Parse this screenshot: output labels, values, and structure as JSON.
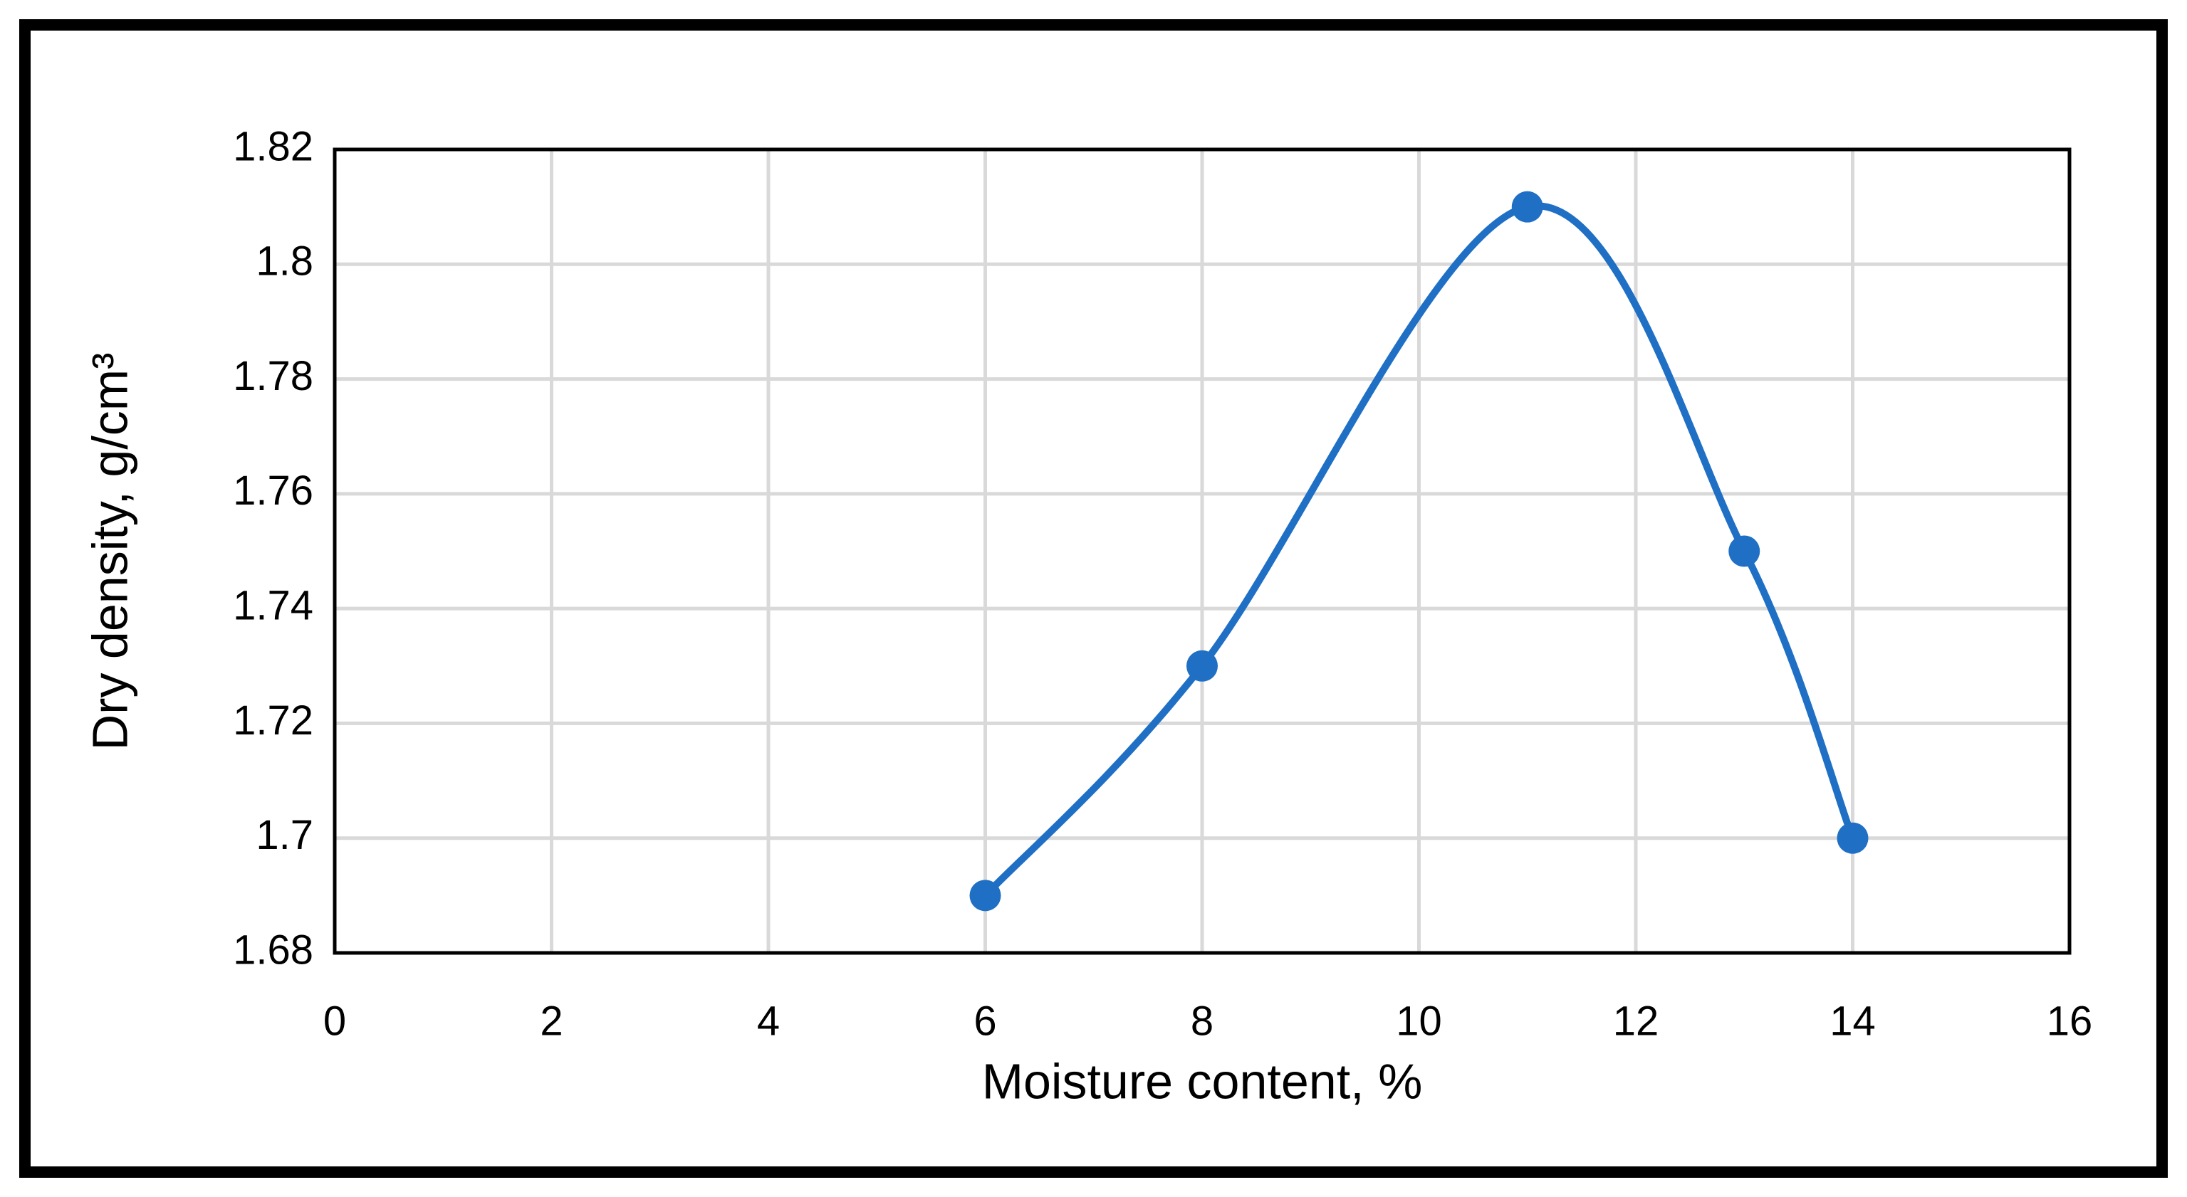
{
  "chart_data": {
    "type": "scatter",
    "smooth": true,
    "x_label": "Moisture content, %",
    "y_label": "Dry density, g/cm³",
    "x": [
      6,
      8,
      11,
      13,
      14
    ],
    "series": [
      {
        "name": "Dry density",
        "color": "#1f6fc5",
        "values": [
          1.69,
          1.73,
          1.81,
          1.75,
          1.7
        ]
      }
    ],
    "xlim": [
      0,
      16
    ],
    "xticks": [
      0,
      2,
      4,
      6,
      8,
      10,
      12,
      14,
      16
    ],
    "ylim": [
      1.68,
      1.82
    ],
    "yticks": [
      1.68,
      1.7,
      1.72,
      1.74,
      1.76,
      1.78,
      1.8,
      1.82
    ],
    "grid": true
  }
}
